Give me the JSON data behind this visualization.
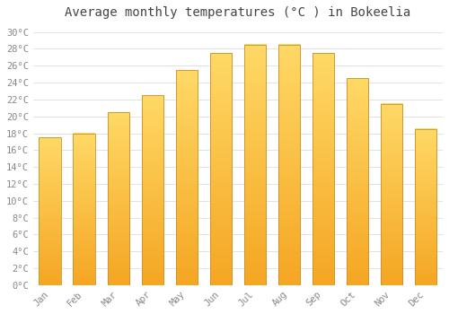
{
  "title": "Average monthly temperatures (°C ) in Bokeelia",
  "months": [
    "Jan",
    "Feb",
    "Mar",
    "Apr",
    "May",
    "Jun",
    "Jul",
    "Aug",
    "Sep",
    "Oct",
    "Nov",
    "Dec"
  ],
  "values": [
    17.5,
    18.0,
    20.5,
    22.5,
    25.5,
    27.5,
    28.5,
    28.5,
    27.5,
    24.5,
    21.5,
    18.5
  ],
  "bar_color_bottom": "#F5A623",
  "bar_color_top": "#FFD966",
  "bar_edge_color": "#C8922A",
  "background_color": "#FFFFFF",
  "grid_color": "#DDDDDD",
  "ytick_labels": [
    "0°C",
    "2°C",
    "4°C",
    "6°C",
    "8°C",
    "10°C",
    "12°C",
    "14°C",
    "16°C",
    "18°C",
    "20°C",
    "22°C",
    "24°C",
    "26°C",
    "28°C",
    "30°C"
  ],
  "ytick_values": [
    0,
    2,
    4,
    6,
    8,
    10,
    12,
    14,
    16,
    18,
    20,
    22,
    24,
    26,
    28,
    30
  ],
  "ylim": [
    0,
    31
  ],
  "title_fontsize": 10,
  "tick_fontsize": 7.5,
  "title_color": "#444444",
  "tick_color": "#888888",
  "bar_width": 0.65
}
